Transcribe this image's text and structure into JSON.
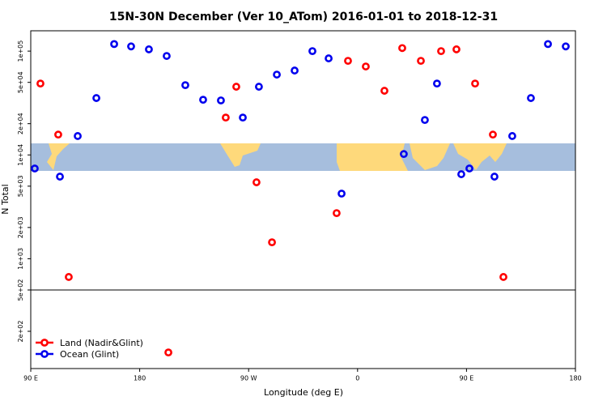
{
  "chart_data": {
    "type": "scatter",
    "title": "15N-30N December (Ver 10_ATom)   2016-01-01 to 2018-12-31",
    "xlabel": "Longitude (deg E)",
    "ylabel": "N Total",
    "xlim": [
      90,
      540
    ],
    "ylim": [
      87.5,
      157000
    ],
    "log_y": true,
    "xticks": [
      {
        "value": 90,
        "label": "90 E"
      },
      {
        "value": 180,
        "label": "180"
      },
      {
        "value": 270,
        "label": "90 W"
      },
      {
        "value": 360,
        "label": "0"
      },
      {
        "value": 450,
        "label": "90 E"
      },
      {
        "value": 540,
        "label": "180"
      }
    ],
    "yticks": [
      {
        "value": 200,
        "label": "2e+02"
      },
      {
        "value": 500,
        "label": "5e+02"
      },
      {
        "value": 1000,
        "label": "1e+03"
      },
      {
        "value": 2000,
        "label": "2e+03"
      },
      {
        "value": 5000,
        "label": "5e+03"
      },
      {
        "value": 10000,
        "label": "1e+04"
      },
      {
        "value": 20000,
        "label": "2e+04"
      },
      {
        "value": 50000,
        "label": "5e+04"
      },
      {
        "value": 100000,
        "label": "1e+05"
      }
    ],
    "reference_line": 500,
    "legend": "bottom-left",
    "series": [
      {
        "name": "Land (Nadir&Glint)",
        "color": "#ff0000",
        "x": [
          98.0,
          112.7,
          121.4,
          203.7,
          251.1,
          259.8,
          276.5,
          289.3,
          342.7,
          352.1,
          366.8,
          382.2,
          396.9,
          412.3,
          429.0,
          441.7,
          457.1,
          471.8,
          480.5
        ],
        "values": [
          48700,
          15700,
          667,
          125,
          22900,
          45400,
          5450,
          1440,
          2750,
          80600,
          71100,
          41500,
          107000,
          80600,
          100000,
          104000,
          48700,
          15700,
          667
        ]
      },
      {
        "name": "Ocean (Glint)",
        "color": "#0000ee",
        "x": [
          93.3,
          114.1,
          128.8,
          144.2,
          158.9,
          172.9,
          187.6,
          202.3,
          217.7,
          232.4,
          247.1,
          265.2,
          278.5,
          293.3,
          308.0,
          322.7,
          336.1,
          346.8,
          398.2,
          415.6,
          425.6,
          445.7,
          452.4,
          473.1,
          487.8,
          503.2,
          517.3,
          532.0
        ],
        "values": [
          7400,
          6180,
          15200,
          35300,
          117000,
          111000,
          104000,
          89800,
          47000,
          34000,
          33500,
          22900,
          45400,
          59400,
          65000,
          100000,
          85100,
          4240,
          10200,
          21700,
          48700,
          6520,
          7400,
          6180,
          15200,
          35300,
          117000,
          111000
        ]
      }
    ]
  }
}
